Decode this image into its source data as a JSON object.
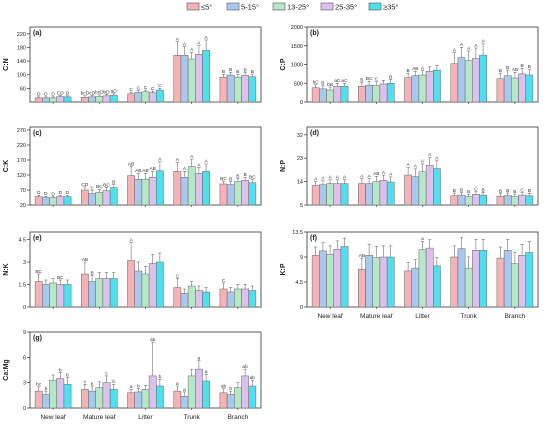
{
  "legend": [
    {
      "label": "≤5°",
      "color": "#f5b3b7"
    },
    {
      "label": "5-15°",
      "color": "#a9c8ef"
    },
    {
      "label": "13-25°",
      "color": "#b4e8c7"
    },
    {
      "label": "25-35°",
      "color": "#dec0ec"
    },
    {
      "label": "≥35°",
      "color": "#4fe0f0"
    }
  ],
  "chart_data": [
    {
      "panel": "(a)",
      "type": "bar",
      "ylabel": "C:N",
      "categories": [
        "New leaf",
        "Mature leaf",
        "Litter",
        "Trunk",
        "Branch"
      ],
      "ylim": [
        20,
        240
      ],
      "yticks": [
        60,
        100,
        140,
        180,
        220
      ],
      "series": [
        {
          "name": "≤5°",
          "values": [
            32,
            34,
            44,
            157,
            93
          ],
          "err": [
            3,
            4,
            5,
            40,
            8
          ]
        },
        {
          "name": "5-15°",
          "values": [
            32,
            35,
            48,
            157,
            99
          ],
          "err": [
            3,
            4,
            5,
            25,
            8
          ]
        },
        {
          "name": "13-25°",
          "values": [
            32,
            37,
            50,
            146,
            93
          ],
          "err": [
            3,
            4,
            5,
            20,
            8
          ]
        },
        {
          "name": "25-35°",
          "values": [
            36,
            38,
            47,
            160,
            98
          ],
          "err": [
            3,
            4,
            5,
            25,
            8
          ]
        },
        {
          "name": "≥35°",
          "values": [
            35,
            40,
            55,
            172,
            94
          ],
          "err": [
            3,
            4,
            5,
            30,
            8
          ]
        }
      ],
      "letters": [
        [
          "D",
          "D",
          "D",
          "CD",
          "D"
        ],
        [
          "bcD",
          "cD",
          "bcD",
          "bD",
          "aD"
        ],
        [
          "C",
          "C",
          "C",
          "C",
          "C"
        ],
        [
          "A",
          "A",
          "A",
          "A",
          "A"
        ],
        [
          "B",
          "B",
          "B",
          "B",
          "B"
        ]
      ]
    },
    {
      "panel": "(b)",
      "type": "bar",
      "ylabel": "C:P",
      "categories": [
        "New leaf",
        "Mature leaf",
        "Litter",
        "Trunk",
        "Branch"
      ],
      "ylim": [
        0,
        2000
      ],
      "yticks": [
        0,
        500,
        1000,
        1500,
        2000
      ],
      "series": [
        {
          "name": "≤5°",
          "values": [
            380,
            420,
            650,
            1020,
            620
          ],
          "err": [
            80,
            100,
            120,
            300,
            150
          ]
        },
        {
          "name": "5-15°",
          "values": [
            350,
            450,
            700,
            1180,
            700
          ],
          "err": [
            80,
            100,
            120,
            280,
            150
          ]
        },
        {
          "name": "13-25°",
          "values": [
            320,
            440,
            720,
            1100,
            640
          ],
          "err": [
            80,
            100,
            120,
            260,
            150
          ]
        },
        {
          "name": "25-35°",
          "values": [
            420,
            480,
            820,
            1160,
            750
          ],
          "err": [
            80,
            100,
            120,
            280,
            150
          ]
        },
        {
          "name": "≥35°",
          "values": [
            420,
            500,
            850,
            1250,
            720
          ],
          "err": [
            80,
            100,
            120,
            300,
            150
          ]
        }
      ],
      "letters": [
        [
          "bC",
          "B",
          "bB",
          "aC",
          "aC"
        ],
        [
          "B",
          "BC",
          "C",
          "",
          "B"
        ],
        [
          "B",
          "AB",
          "A",
          "",
          ""
        ],
        [
          "A",
          "A",
          "A",
          "A",
          "A"
        ],
        [
          "B",
          "B",
          "AB",
          "B",
          "B"
        ]
      ]
    },
    {
      "panel": "(c)",
      "type": "bar",
      "ylabel": "C:K",
      "categories": [
        "New leaf",
        "Mature leaf",
        "Litter",
        "Trunk",
        "Branch"
      ],
      "ylim": [
        20,
        280
      ],
      "yticks": [
        20,
        70,
        120,
        170,
        220,
        270
      ],
      "series": [
        {
          "name": "≤5°",
          "values": [
            48,
            70,
            118,
            132,
            90
          ],
          "err": [
            4,
            10,
            30,
            30,
            10
          ]
        },
        {
          "name": "5-15°",
          "values": [
            45,
            58,
            106,
            112,
            88
          ],
          "err": [
            4,
            10,
            20,
            20,
            10
          ]
        },
        {
          "name": "13-25°",
          "values": [
            44,
            62,
            106,
            148,
            98
          ],
          "err": [
            4,
            10,
            20,
            25,
            10
          ]
        },
        {
          "name": "25-35°",
          "values": [
            48,
            68,
            112,
            125,
            102
          ],
          "err": [
            4,
            10,
            20,
            20,
            10
          ]
        },
        {
          "name": "≥35°",
          "values": [
            48,
            78,
            134,
            132,
            94
          ],
          "err": [
            4,
            10,
            30,
            25,
            10
          ]
        }
      ],
      "letters": [
        [
          "D",
          "D",
          "D",
          "D",
          "D"
        ],
        [
          "CD",
          "C",
          "BC",
          "BC",
          "B"
        ],
        [
          "AB",
          "AB",
          "AB",
          "AB",
          "A"
        ],
        [
          "A",
          "A",
          "A",
          "A",
          "A"
        ],
        [
          "BC",
          "B",
          "B",
          "B",
          "BC"
        ]
      ]
    },
    {
      "panel": "(d)",
      "type": "bar",
      "ylabel": "N:P",
      "categories": [
        "New leaf",
        "Mature leaf",
        "Litter",
        "Trunk",
        "Branch"
      ],
      "ylim": [
        5,
        35
      ],
      "yticks": [
        5,
        14,
        23,
        32
      ],
      "series": [
        {
          "name": "≤5°",
          "values": [
            12.5,
            13.2,
            16.5,
            8.6,
            8.4
          ],
          "err": [
            1.5,
            2,
            3,
            1,
            1
          ]
        },
        {
          "name": "5-15°",
          "values": [
            12.8,
            13.2,
            15.9,
            8.8,
            8.6
          ],
          "err": [
            1.5,
            2,
            3,
            1,
            1
          ]
        },
        {
          "name": "13-25°",
          "values": [
            13.2,
            14.0,
            17.8,
            8.2,
            8.2
          ],
          "err": [
            1.5,
            2,
            3,
            1,
            1
          ]
        },
        {
          "name": "25-35°",
          "values": [
            13.2,
            14.5,
            20.3,
            9.1,
            8.8
          ],
          "err": [
            1.5,
            2,
            3,
            1,
            1
          ]
        },
        {
          "name": "≥35°",
          "values": [
            13.2,
            13.8,
            19.0,
            8.8,
            8.5
          ],
          "err": [
            1.5,
            2,
            3,
            1,
            1
          ]
        }
      ],
      "letters": [
        [
          "A",
          "A",
          "A",
          "A",
          "A"
        ],
        [
          "A",
          "A",
          "AB",
          "A",
          "A"
        ],
        [
          "A",
          "A",
          "A",
          "A",
          "A"
        ],
        [
          "B",
          "B",
          "B",
          "C",
          "B"
        ],
        [
          "B",
          "B",
          "B",
          "C",
          "B"
        ]
      ]
    },
    {
      "panel": "(e)",
      "type": "bar",
      "ylabel": "N:K",
      "categories": [
        "New leaf",
        "Mature leaf",
        "Litter",
        "Trunk",
        "Branch"
      ],
      "ylim": [
        0,
        5
      ],
      "yticks": [
        0.0,
        1.5,
        3.0,
        4.5
      ],
      "series": [
        {
          "name": "≤5°",
          "values": [
            1.7,
            2.2,
            3.1,
            1.3,
            1.2
          ],
          "err": [
            0.5,
            0.8,
            1.2,
            0.6,
            0.4
          ]
        },
        {
          "name": "5-15°",
          "values": [
            1.5,
            1.7,
            2.4,
            0.9,
            1.0
          ],
          "err": [
            0.3,
            0.4,
            0.6,
            0.3,
            0.3
          ]
        },
        {
          "name": "13-25°",
          "values": [
            1.6,
            1.9,
            2.2,
            1.4,
            1.2
          ],
          "err": [
            0.3,
            0.4,
            0.5,
            0.3,
            0.3
          ]
        },
        {
          "name": "25-35°",
          "values": [
            1.5,
            1.9,
            2.9,
            1.1,
            1.2
          ],
          "err": [
            0.3,
            0.4,
            0.6,
            0.3,
            0.3
          ]
        },
        {
          "name": "≥35°",
          "values": [
            1.5,
            1.9,
            3.0,
            1.0,
            1.1
          ],
          "err": [
            0.3,
            0.4,
            0.6,
            0.3,
            0.3
          ]
        }
      ],
      "letters": [
        [
          "BC",
          "",
          "",
          "BC",
          ""
        ],
        [
          "AB",
          "B",
          "",
          "",
          ""
        ],
        [
          "A",
          "",
          "",
          "",
          ""
        ],
        [
          "C",
          "",
          "",
          "",
          ""
        ],
        [
          "C",
          "",
          "",
          "",
          ""
        ]
      ]
    },
    {
      "panel": "(f)",
      "type": "bar",
      "ylabel": "K:P",
      "categories": [
        "New leaf",
        "Mature leaf",
        "Litter",
        "Trunk",
        "Branch"
      ],
      "ylim": [
        0,
        13.5
      ],
      "yticks": [
        0.0,
        4.5,
        9.0,
        13.5
      ],
      "series": [
        {
          "name": "≤5°",
          "values": [
            9.3,
            6.8,
            6.5,
            9.0,
            8.8
          ],
          "err": [
            1.5,
            2,
            1.5,
            2,
            2
          ]
        },
        {
          "name": "5-15°",
          "values": [
            10.1,
            9.3,
            7.0,
            10.5,
            10.2
          ],
          "err": [
            1.5,
            2,
            1.5,
            2,
            2
          ]
        },
        {
          "name": "13-25°",
          "values": [
            9.5,
            8.9,
            10.3,
            7.0,
            7.8
          ],
          "err": [
            1.5,
            2,
            1.5,
            2,
            2
          ]
        },
        {
          "name": "25-35°",
          "values": [
            10.4,
            9.0,
            10.6,
            10.2,
            9.3
          ],
          "err": [
            1.5,
            2,
            1.5,
            2,
            2
          ]
        },
        {
          "name": "≥35°",
          "values": [
            10.9,
            9.0,
            7.4,
            10.2,
            9.8
          ],
          "err": [
            1.5,
            2,
            1.5,
            2,
            2
          ]
        }
      ],
      "letters": [
        [
          "",
          "",
          "",
          "",
          ""
        ],
        [
          "AB",
          "",
          "",
          "",
          ""
        ],
        [
          "",
          "",
          "a",
          "",
          ""
        ],
        [
          "",
          "",
          "",
          "",
          ""
        ],
        [
          "",
          "",
          "",
          "",
          ""
        ]
      ]
    },
    {
      "panel": "(g)",
      "type": "bar",
      "ylabel": "Ca:Mg",
      "categories": [
        "New leaf",
        "Mature leaf",
        "Litter",
        "Trunk",
        "Branch"
      ],
      "ylim": [
        0,
        9
      ],
      "yticks": [
        0,
        3,
        6,
        9
      ],
      "series": [
        {
          "name": "≤5°",
          "values": [
            2.0,
            2.2,
            1.8,
            2.0,
            1.8
          ],
          "err": [
            0.5,
            0.6,
            0.4,
            0.6,
            0.5
          ]
        },
        {
          "name": "5-15°",
          "values": [
            1.6,
            2.0,
            1.9,
            1.4,
            1.6
          ],
          "err": [
            0.4,
            0.5,
            0.4,
            0.5,
            0.4
          ]
        },
        {
          "name": "13-25°",
          "values": [
            3.3,
            2.4,
            2.2,
            3.8,
            2.4
          ],
          "err": [
            0.6,
            0.7,
            0.5,
            0.8,
            0.6
          ]
        },
        {
          "name": "25-35°",
          "values": [
            3.5,
            3.0,
            3.8,
            4.6,
            3.8
          ],
          "err": [
            0.7,
            0.8,
            4.0,
            1.0,
            0.8
          ]
        },
        {
          "name": "≥35°",
          "values": [
            2.8,
            2.2,
            2.6,
            3.2,
            2.6
          ],
          "err": [
            0.8,
            0.6,
            0.8,
            0.8,
            0.7
          ]
        }
      ],
      "letters": [
        [
          "bc",
          "b",
          "",
          "b",
          "b"
        ],
        [
          "c",
          "b",
          "",
          "c",
          "b"
        ],
        [
          "a",
          "b",
          "",
          "ab",
          "b"
        ],
        [
          "a",
          "a",
          "",
          "a",
          "a"
        ],
        [
          "ab",
          "b",
          "",
          "ab",
          "ab"
        ]
      ]
    }
  ]
}
